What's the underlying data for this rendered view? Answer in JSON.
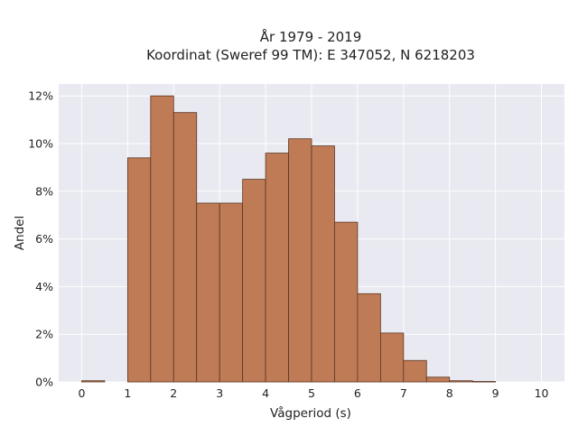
{
  "chart_data": {
    "type": "bar",
    "title_lines": [
      "År 1979 - 2019",
      "Koordinat (Sweref 99 TM): E 347052, N 6218203"
    ],
    "xlabel": "Vågperiod (s)",
    "ylabel": "Andel",
    "xlim": [
      -0.5,
      10.5
    ],
    "ylim": [
      0,
      12.5
    ],
    "x_ticks": [
      0,
      1,
      2,
      3,
      4,
      5,
      6,
      7,
      8,
      9,
      10
    ],
    "y_ticks": [
      0,
      2,
      4,
      6,
      8,
      10,
      12
    ],
    "y_tick_labels": [
      "0%",
      "2%",
      "4%",
      "6%",
      "8%",
      "10%",
      "12%"
    ],
    "bin_width": 0.5,
    "bins": [
      {
        "x0": 0.0,
        "value": 0.05
      },
      {
        "x0": 0.5,
        "value": 0.0
      },
      {
        "x0": 1.0,
        "value": 9.4
      },
      {
        "x0": 1.5,
        "value": 12.0
      },
      {
        "x0": 2.0,
        "value": 11.3
      },
      {
        "x0": 2.5,
        "value": 7.5
      },
      {
        "x0": 3.0,
        "value": 7.5
      },
      {
        "x0": 3.5,
        "value": 8.5
      },
      {
        "x0": 4.0,
        "value": 9.6
      },
      {
        "x0": 4.5,
        "value": 10.2
      },
      {
        "x0": 5.0,
        "value": 9.9
      },
      {
        "x0": 5.5,
        "value": 6.7
      },
      {
        "x0": 6.0,
        "value": 3.7
      },
      {
        "x0": 6.5,
        "value": 2.05
      },
      {
        "x0": 7.0,
        "value": 0.9
      },
      {
        "x0": 7.5,
        "value": 0.2
      },
      {
        "x0": 8.0,
        "value": 0.05
      },
      {
        "x0": 8.5,
        "value": 0.02
      }
    ],
    "grid": true,
    "colors": {
      "bar": "#bf7b56",
      "bar_edge": "#5a3520",
      "plot_bg": "#e9e9f1",
      "grid": "#ffffff"
    }
  }
}
